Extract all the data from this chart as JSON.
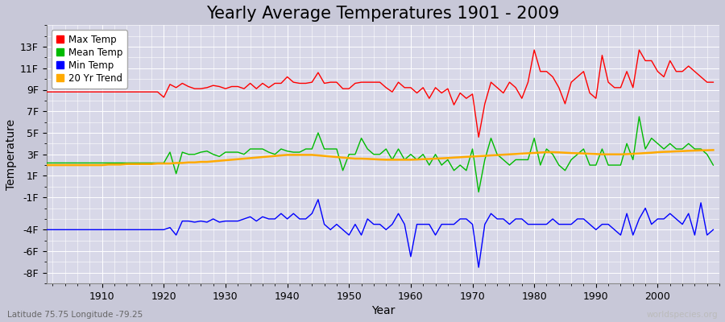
{
  "title": "Yearly Average Temperatures 1901 - 2009",
  "xlabel": "Year",
  "ylabel": "Temperature",
  "lat_lon_label": "Latitude 75.75 Longitude -79.25",
  "watermark": "worldspecies.org",
  "bg_color": "#c8c8d8",
  "plot_bg_color": "#d8d8e8",
  "grid_color": "#ffffff",
  "ylim": [
    -9,
    15
  ],
  "yticks": [
    -8,
    -6,
    -4,
    -1,
    1,
    3,
    5,
    7,
    9,
    11,
    13
  ],
  "ytick_labels": [
    "-8F",
    "-6F",
    "-4F",
    "-1F",
    "1F",
    "3F",
    "5F",
    "7F",
    "9F",
    "11F",
    "13F"
  ],
  "xlim": [
    1901,
    2010
  ],
  "years": [
    1901,
    1902,
    1903,
    1904,
    1905,
    1906,
    1907,
    1908,
    1909,
    1910,
    1911,
    1912,
    1913,
    1914,
    1915,
    1916,
    1917,
    1918,
    1919,
    1920,
    1921,
    1922,
    1923,
    1924,
    1925,
    1926,
    1927,
    1928,
    1929,
    1930,
    1931,
    1932,
    1933,
    1934,
    1935,
    1936,
    1937,
    1938,
    1939,
    1940,
    1941,
    1942,
    1943,
    1944,
    1945,
    1946,
    1947,
    1948,
    1949,
    1950,
    1951,
    1952,
    1953,
    1954,
    1955,
    1956,
    1957,
    1958,
    1959,
    1960,
    1961,
    1962,
    1963,
    1964,
    1965,
    1966,
    1967,
    1968,
    1969,
    1970,
    1971,
    1972,
    1973,
    1974,
    1975,
    1976,
    1977,
    1978,
    1979,
    1980,
    1981,
    1982,
    1983,
    1984,
    1985,
    1986,
    1987,
    1988,
    1989,
    1990,
    1991,
    1992,
    1993,
    1994,
    1995,
    1996,
    1997,
    1998,
    1999,
    2000,
    2001,
    2002,
    2003,
    2004,
    2005,
    2006,
    2007,
    2008,
    2009
  ],
  "max_temp": [
    8.8,
    8.8,
    8.8,
    8.8,
    8.8,
    8.8,
    8.8,
    8.8,
    8.8,
    8.8,
    8.8,
    8.8,
    8.8,
    8.8,
    8.8,
    8.8,
    8.8,
    8.8,
    8.8,
    8.3,
    9.5,
    9.2,
    9.6,
    9.3,
    9.1,
    9.1,
    9.2,
    9.4,
    9.3,
    9.1,
    9.3,
    9.3,
    9.1,
    9.6,
    9.1,
    9.6,
    9.2,
    9.6,
    9.6,
    10.2,
    9.7,
    9.6,
    9.6,
    9.7,
    10.6,
    9.6,
    9.7,
    9.7,
    9.1,
    9.1,
    9.6,
    9.7,
    9.7,
    9.7,
    9.7,
    9.2,
    8.8,
    9.7,
    9.2,
    9.2,
    8.7,
    9.2,
    8.2,
    9.2,
    8.7,
    9.1,
    7.6,
    8.7,
    8.2,
    8.6,
    4.6,
    7.7,
    9.7,
    9.2,
    8.7,
    9.7,
    9.2,
    8.2,
    9.7,
    12.7,
    10.7,
    10.7,
    10.2,
    9.2,
    7.7,
    9.7,
    10.2,
    10.7,
    8.7,
    8.2,
    12.2,
    9.7,
    9.2,
    9.2,
    10.7,
    9.2,
    12.7,
    11.7,
    11.7,
    10.7,
    10.2,
    11.7,
    10.7,
    10.7,
    11.2,
    10.7,
    10.2,
    9.7,
    9.7
  ],
  "mean_temp": [
    2.2,
    2.2,
    2.2,
    2.2,
    2.2,
    2.2,
    2.2,
    2.2,
    2.2,
    2.2,
    2.2,
    2.2,
    2.2,
    2.2,
    2.2,
    2.2,
    2.2,
    2.2,
    2.2,
    2.2,
    3.2,
    1.2,
    3.2,
    3.0,
    3.0,
    3.2,
    3.3,
    3.0,
    2.8,
    3.2,
    3.2,
    3.2,
    3.0,
    3.5,
    3.5,
    3.5,
    3.2,
    3.0,
    3.5,
    3.3,
    3.2,
    3.2,
    3.5,
    3.5,
    5.0,
    3.5,
    3.5,
    3.5,
    1.5,
    3.0,
    3.0,
    4.5,
    3.5,
    3.0,
    3.0,
    3.5,
    2.5,
    3.5,
    2.5,
    3.0,
    2.5,
    3.0,
    2.0,
    3.0,
    2.0,
    2.5,
    1.5,
    2.0,
    1.5,
    3.5,
    -0.5,
    2.5,
    4.5,
    3.0,
    2.5,
    2.0,
    2.5,
    2.5,
    2.5,
    4.5,
    2.0,
    3.5,
    3.0,
    2.0,
    1.5,
    2.5,
    3.0,
    3.5,
    2.0,
    2.0,
    3.5,
    2.0,
    2.0,
    2.0,
    4.0,
    2.5,
    6.5,
    3.5,
    4.5,
    4.0,
    3.5,
    4.0,
    3.5,
    3.5,
    4.0,
    3.5,
    3.5,
    3.0,
    2.0
  ],
  "min_temp": [
    -4.0,
    -4.0,
    -4.0,
    -4.0,
    -4.0,
    -4.0,
    -4.0,
    -4.0,
    -4.0,
    -4.0,
    -4.0,
    -4.0,
    -4.0,
    -4.0,
    -4.0,
    -4.0,
    -4.0,
    -4.0,
    -4.0,
    -4.0,
    -3.8,
    -4.5,
    -3.2,
    -3.2,
    -3.3,
    -3.2,
    -3.3,
    -3.0,
    -3.3,
    -3.2,
    -3.2,
    -3.2,
    -3.0,
    -2.8,
    -3.2,
    -2.8,
    -3.0,
    -3.0,
    -2.5,
    -3.0,
    -2.5,
    -3.0,
    -3.0,
    -2.5,
    -1.2,
    -3.5,
    -4.0,
    -3.5,
    -4.0,
    -4.5,
    -3.5,
    -4.5,
    -3.0,
    -3.5,
    -3.5,
    -4.0,
    -3.5,
    -2.5,
    -3.5,
    -6.5,
    -3.5,
    -3.5,
    -3.5,
    -4.5,
    -3.5,
    -3.5,
    -3.5,
    -3.0,
    -3.0,
    -3.5,
    -7.5,
    -3.5,
    -2.5,
    -3.0,
    -3.0,
    -3.5,
    -3.0,
    -3.0,
    -3.5,
    -3.5,
    -3.5,
    -3.5,
    -3.0,
    -3.5,
    -3.5,
    -3.5,
    -3.0,
    -3.0,
    -3.5,
    -4.0,
    -3.5,
    -3.5,
    -4.0,
    -4.5,
    -2.5,
    -4.5,
    -3.0,
    -2.0,
    -3.5,
    -3.0,
    -3.0,
    -2.5,
    -3.0,
    -3.5,
    -2.5,
    -4.5,
    -1.5,
    -4.5,
    -4.0
  ],
  "trend": [
    2.0,
    2.0,
    2.0,
    2.0,
    2.0,
    2.0,
    2.0,
    2.0,
    2.0,
    2.0,
    2.05,
    2.05,
    2.05,
    2.1,
    2.1,
    2.1,
    2.1,
    2.1,
    2.15,
    2.15,
    2.15,
    2.2,
    2.2,
    2.25,
    2.25,
    2.3,
    2.3,
    2.35,
    2.4,
    2.45,
    2.5,
    2.55,
    2.6,
    2.65,
    2.7,
    2.75,
    2.8,
    2.85,
    2.9,
    2.95,
    2.95,
    2.95,
    2.95,
    2.95,
    2.9,
    2.85,
    2.8,
    2.75,
    2.7,
    2.65,
    2.6,
    2.6,
    2.58,
    2.55,
    2.52,
    2.5,
    2.5,
    2.5,
    2.5,
    2.5,
    2.52,
    2.55,
    2.57,
    2.6,
    2.63,
    2.66,
    2.7,
    2.73,
    2.77,
    2.8,
    2.83,
    2.86,
    2.9,
    2.93,
    2.97,
    3.0,
    3.03,
    3.07,
    3.1,
    3.13,
    3.17,
    3.2,
    3.2,
    3.18,
    3.15,
    3.12,
    3.1,
    3.08,
    3.05,
    3.03,
    3.0,
    3.0,
    3.0,
    3.0,
    3.02,
    3.05,
    3.08,
    3.12,
    3.15,
    3.2,
    3.23,
    3.25,
    3.28,
    3.3,
    3.33,
    3.35,
    3.37,
    3.38,
    3.4
  ],
  "max_color": "#ff0000",
  "mean_color": "#00bb00",
  "min_color": "#0000ff",
  "trend_color": "#ffaa00",
  "legend_labels": [
    "Max Temp",
    "Mean Temp",
    "Min Temp",
    "20 Yr Trend"
  ],
  "title_fontsize": 15,
  "axis_label_fontsize": 10,
  "tick_fontsize": 9,
  "line_width": 1.0
}
